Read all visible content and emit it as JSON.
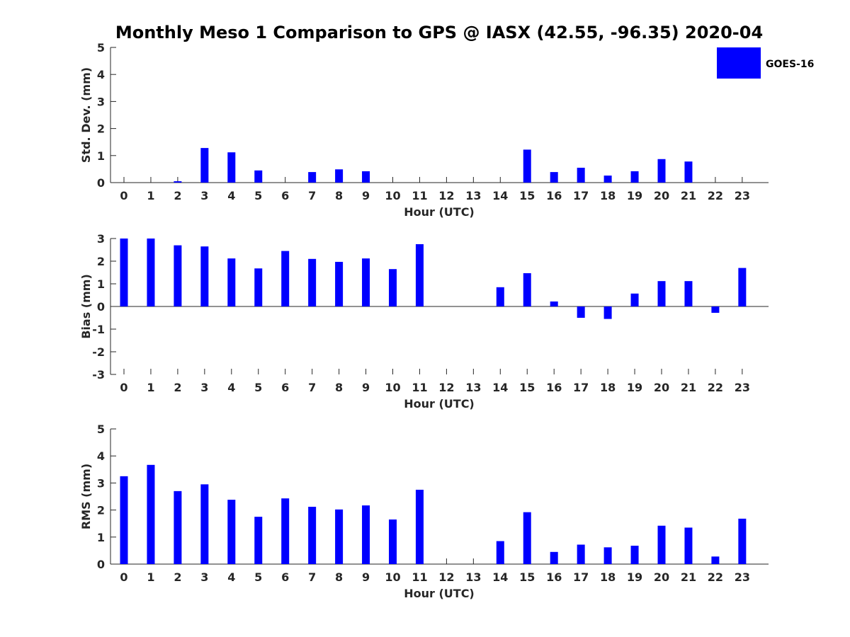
{
  "title": "Monthly Meso 1 Comparison to GPS @ IASX (42.55, -96.35) 2020-04",
  "legend": {
    "label": "GOES-16",
    "position": "top-right"
  },
  "colors": {
    "bar": "#0000ff",
    "axis": "#262626"
  },
  "chart_data": [
    {
      "type": "bar",
      "xlabel": "Hour (UTC)",
      "ylabel": "Std. Dev. (mm)",
      "ylim": [
        0,
        5
      ],
      "yticks": [
        0,
        1,
        2,
        3,
        4,
        5
      ],
      "categories": [
        "0",
        "1",
        "2",
        "3",
        "4",
        "5",
        "6",
        "7",
        "8",
        "9",
        "10",
        "11",
        "12",
        "13",
        "14",
        "15",
        "16",
        "17",
        "18",
        "19",
        "20",
        "21",
        "22",
        "23"
      ],
      "series": [
        {
          "name": "GOES-16",
          "values": [
            null,
            null,
            0.05,
            1.28,
            1.12,
            0.45,
            null,
            0.39,
            0.49,
            0.42,
            null,
            null,
            null,
            null,
            null,
            1.22,
            0.39,
            0.55,
            0.26,
            0.42,
            0.87,
            0.78,
            null,
            null
          ]
        }
      ]
    },
    {
      "type": "bar",
      "xlabel": "Hour (UTC)",
      "ylabel": "Bias (mm)",
      "ylim": [
        -3,
        3
      ],
      "yticks": [
        -3,
        -2,
        -1,
        0,
        1,
        2,
        3
      ],
      "categories": [
        "0",
        "1",
        "2",
        "3",
        "4",
        "5",
        "6",
        "7",
        "8",
        "9",
        "10",
        "11",
        "12",
        "13",
        "14",
        "15",
        "16",
        "17",
        "18",
        "19",
        "20",
        "21",
        "22",
        "23"
      ],
      "series": [
        {
          "name": "GOES-16",
          "values": [
            3.0,
            3.0,
            2.7,
            2.65,
            2.12,
            1.68,
            2.45,
            2.1,
            1.97,
            2.12,
            1.65,
            2.75,
            null,
            null,
            0.85,
            1.47,
            0.22,
            -0.5,
            -0.55,
            0.57,
            1.12,
            1.12,
            -0.28,
            1.7
          ]
        }
      ]
    },
    {
      "type": "bar",
      "xlabel": "Hour (UTC)",
      "ylabel": "RMS (mm)",
      "ylim": [
        0,
        5
      ],
      "yticks": [
        0,
        1,
        2,
        3,
        4,
        5
      ],
      "categories": [
        "0",
        "1",
        "2",
        "3",
        "4",
        "5",
        "6",
        "7",
        "8",
        "9",
        "10",
        "11",
        "12",
        "13",
        "14",
        "15",
        "16",
        "17",
        "18",
        "19",
        "20",
        "21",
        "22",
        "23"
      ],
      "series": [
        {
          "name": "GOES-16",
          "values": [
            3.25,
            3.67,
            2.7,
            2.95,
            2.38,
            1.75,
            2.43,
            2.12,
            2.02,
            2.17,
            1.65,
            2.75,
            null,
            null,
            0.85,
            1.92,
            0.45,
            0.72,
            0.62,
            0.68,
            1.42,
            1.35,
            0.28,
            1.68
          ]
        }
      ]
    }
  ]
}
